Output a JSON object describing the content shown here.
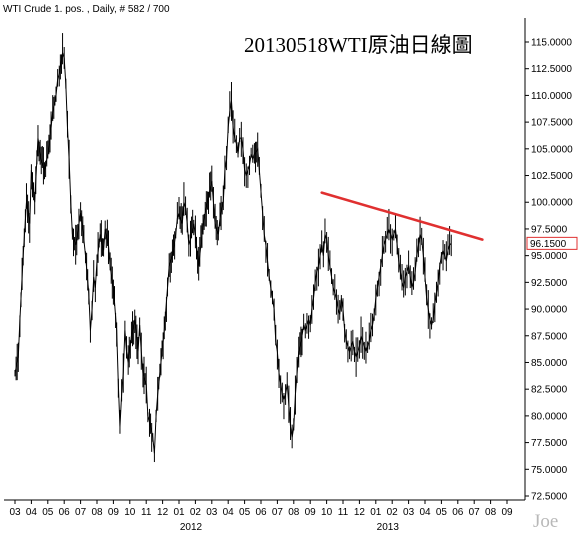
{
  "header": {
    "study_label": "WTI Crude 1. pos. , Daily, # 582 / 700"
  },
  "watermark": "Joe",
  "chart_data": {
    "type": "line",
    "title": "20130518WTI原油日線圖",
    "ylim": [
      72.5,
      115.0
    ],
    "y_ticks": [
      "115.0000",
      "112.5000",
      "110.0000",
      "107.5000",
      "105.0000",
      "102.5000",
      "100.0000",
      "97.5000",
      "95.0000",
      "92.5000",
      "90.0000",
      "87.5000",
      "85.0000",
      "82.5000",
      "80.0000",
      "77.5000",
      "75.0000",
      "72.5000"
    ],
    "y_tick_values": [
      115.0,
      112.5,
      110.0,
      107.5,
      105.0,
      102.5,
      100.0,
      97.5,
      95.0,
      92.5,
      90.0,
      87.5,
      85.0,
      82.5,
      80.0,
      77.5,
      75.0,
      72.5
    ],
    "month_labels": [
      "03",
      "04",
      "05",
      "06",
      "07",
      "08",
      "09",
      "10",
      "11",
      "12",
      "01",
      "02",
      "03",
      "04",
      "05",
      "06",
      "07",
      "08",
      "09",
      "10",
      "11",
      "12",
      "01",
      "02",
      "03",
      "04",
      "05",
      "06",
      "07",
      "08",
      "09"
    ],
    "year_labels": [
      {
        "label": "2012",
        "month_index": 10
      },
      {
        "label": "2013",
        "month_index": 22
      }
    ],
    "month_span": [
      0,
      30.6
    ],
    "last_price": {
      "label": "96.1500",
      "value": 96.15
    },
    "trendline": {
      "color": "#e03030",
      "points": [
        {
          "t": 18.7,
          "y": 100.9
        },
        {
          "t": 28.5,
          "y": 96.5
        }
      ]
    },
    "series": [
      {
        "color": "#000000",
        "points": [
          [
            0.0,
            84.0
          ],
          [
            0.2,
            85.5
          ],
          [
            0.3,
            89.0
          ],
          [
            0.5,
            95.0
          ],
          [
            0.7,
            100.0
          ],
          [
            0.9,
            98.0
          ],
          [
            1.0,
            103.0
          ],
          [
            1.2,
            100.0
          ],
          [
            1.4,
            106.0
          ],
          [
            1.6,
            104.0
          ],
          [
            1.8,
            103.0
          ],
          [
            2.0,
            104.5
          ],
          [
            2.2,
            107.0
          ],
          [
            2.3,
            108.5
          ],
          [
            2.5,
            110.0
          ],
          [
            2.6,
            111.5
          ],
          [
            2.7,
            112.0
          ],
          [
            2.9,
            114.0
          ],
          [
            3.0,
            113.5
          ],
          [
            3.1,
            111.0
          ],
          [
            3.2,
            107.0
          ],
          [
            3.3,
            104.0
          ],
          [
            3.4,
            100.0
          ],
          [
            3.5,
            97.0
          ],
          [
            3.7,
            96.0
          ],
          [
            3.9,
            98.0
          ],
          [
            4.0,
            99.0
          ],
          [
            4.2,
            96.5
          ],
          [
            4.3,
            95.0
          ],
          [
            4.5,
            91.5
          ],
          [
            4.6,
            88.0
          ],
          [
            4.7,
            90.0
          ],
          [
            4.8,
            93.0
          ],
          [
            4.9,
            92.0
          ],
          [
            5.0,
            94.5
          ],
          [
            5.2,
            97.0
          ],
          [
            5.4,
            95.5
          ],
          [
            5.5,
            97.5
          ],
          [
            5.7,
            96.0
          ],
          [
            5.8,
            94.0
          ],
          [
            6.0,
            92.0
          ],
          [
            6.2,
            88.0
          ],
          [
            6.3,
            83.0
          ],
          [
            6.4,
            79.0
          ],
          [
            6.5,
            82.0
          ],
          [
            6.6,
            84.0
          ],
          [
            6.7,
            88.0
          ],
          [
            6.8,
            86.0
          ],
          [
            6.9,
            85.0
          ],
          [
            7.1,
            87.5
          ],
          [
            7.3,
            89.0
          ],
          [
            7.5,
            86.0
          ],
          [
            7.6,
            88.5
          ],
          [
            7.7,
            86.0
          ],
          [
            7.8,
            84.0
          ],
          [
            8.0,
            83.0
          ],
          [
            8.1,
            80.0
          ],
          [
            8.2,
            79.5
          ],
          [
            8.4,
            78.0
          ],
          [
            8.5,
            76.5
          ],
          [
            8.6,
            80.0
          ],
          [
            8.7,
            82.0
          ],
          [
            8.9,
            85.0
          ],
          [
            9.1,
            88.0
          ],
          [
            9.3,
            92.0
          ],
          [
            9.4,
            94.0
          ],
          [
            9.6,
            95.0
          ],
          [
            9.8,
            97.0
          ],
          [
            9.9,
            98.5
          ],
          [
            10.0,
            99.0
          ],
          [
            10.2,
            98.0
          ],
          [
            10.3,
            100.0
          ],
          [
            10.4,
            99.5
          ],
          [
            10.5,
            98.0
          ],
          [
            10.6,
            96.0
          ],
          [
            10.7,
            96.5
          ],
          [
            10.9,
            98.0
          ],
          [
            11.0,
            97.0
          ],
          [
            11.2,
            94.0
          ],
          [
            11.4,
            97.0
          ],
          [
            11.6,
            99.0
          ],
          [
            11.8,
            100.5
          ],
          [
            12.0,
            102.0
          ],
          [
            12.1,
            100.0
          ],
          [
            12.2,
            98.0
          ],
          [
            12.4,
            97.0
          ],
          [
            12.5,
            98.5
          ],
          [
            12.7,
            100.0
          ],
          [
            12.8,
            103.0
          ],
          [
            12.9,
            104.0
          ],
          [
            13.0,
            107.0
          ],
          [
            13.1,
            108.5
          ],
          [
            13.2,
            109.5
          ],
          [
            13.3,
            107.0
          ],
          [
            13.4,
            106.0
          ],
          [
            13.5,
            105.5
          ],
          [
            13.6,
            104.5
          ],
          [
            13.7,
            106.0
          ],
          [
            13.8,
            106.0
          ],
          [
            13.9,
            105.0
          ],
          [
            14.0,
            103.0
          ],
          [
            14.1,
            102.5
          ],
          [
            14.2,
            103.0
          ],
          [
            14.3,
            103.5
          ],
          [
            14.4,
            104.5
          ],
          [
            14.5,
            104.0
          ],
          [
            14.6,
            104.5
          ],
          [
            14.8,
            105.0
          ],
          [
            14.9,
            103.0
          ],
          [
            15.0,
            101.0
          ],
          [
            15.1,
            99.0
          ],
          [
            15.2,
            97.0
          ],
          [
            15.3,
            96.0
          ],
          [
            15.4,
            94.5
          ],
          [
            15.5,
            93.0
          ],
          [
            15.6,
            92.0
          ],
          [
            15.7,
            91.0
          ],
          [
            15.8,
            90.0
          ],
          [
            15.9,
            87.0
          ],
          [
            16.0,
            86.0
          ],
          [
            16.1,
            84.0
          ],
          [
            16.2,
            83.0
          ],
          [
            16.3,
            82.0
          ],
          [
            16.4,
            81.5
          ],
          [
            16.5,
            82.0
          ],
          [
            16.6,
            83.0
          ],
          [
            16.7,
            81.0
          ],
          [
            16.8,
            79.0
          ],
          [
            16.9,
            78.0
          ],
          [
            17.0,
            79.0
          ],
          [
            17.1,
            82.0
          ],
          [
            17.2,
            84.0
          ],
          [
            17.3,
            86.0
          ],
          [
            17.5,
            87.5
          ],
          [
            17.6,
            88.5
          ],
          [
            17.7,
            88.0
          ],
          [
            17.8,
            88.5
          ],
          [
            17.9,
            89.0
          ],
          [
            18.0,
            88.5
          ],
          [
            18.1,
            90.0
          ],
          [
            18.2,
            91.0
          ],
          [
            18.3,
            92.5
          ],
          [
            18.4,
            93.5
          ],
          [
            18.5,
            94.0
          ],
          [
            18.6,
            95.0
          ],
          [
            18.7,
            96.0
          ],
          [
            18.8,
            95.0
          ],
          [
            18.9,
            97.0
          ],
          [
            19.0,
            96.5
          ],
          [
            19.1,
            95.0
          ],
          [
            19.2,
            94.0
          ],
          [
            19.3,
            93.0
          ],
          [
            19.4,
            92.0
          ],
          [
            19.5,
            91.5
          ],
          [
            19.6,
            91.0
          ],
          [
            19.7,
            90.0
          ],
          [
            19.8,
            89.5
          ],
          [
            19.9,
            91.0
          ],
          [
            20.0,
            90.0
          ],
          [
            20.1,
            88.0
          ],
          [
            20.2,
            87.0
          ],
          [
            20.3,
            86.5
          ],
          [
            20.4,
            86.0
          ],
          [
            20.5,
            86.5
          ],
          [
            20.6,
            87.0
          ],
          [
            20.7,
            86.0
          ],
          [
            20.8,
            85.5
          ],
          [
            20.9,
            86.0
          ],
          [
            21.0,
            86.5
          ],
          [
            21.1,
            87.5
          ],
          [
            21.2,
            87.0
          ],
          [
            21.3,
            86.5
          ],
          [
            21.4,
            86.0
          ],
          [
            21.5,
            86.5
          ],
          [
            21.6,
            87.0
          ],
          [
            21.7,
            88.0
          ],
          [
            21.8,
            88.5
          ],
          [
            21.9,
            89.5
          ],
          [
            22.0,
            91.0
          ],
          [
            22.1,
            92.0
          ],
          [
            22.2,
            93.0
          ],
          [
            22.3,
            94.0
          ],
          [
            22.4,
            95.0
          ],
          [
            22.5,
            96.0
          ],
          [
            22.6,
            96.5
          ],
          [
            22.7,
            97.0
          ],
          [
            22.8,
            97.5
          ],
          [
            22.9,
            97.0
          ],
          [
            23.0,
            96.5
          ],
          [
            23.1,
            97.0
          ],
          [
            23.2,
            97.5
          ],
          [
            23.3,
            96.0
          ],
          [
            23.4,
            94.5
          ],
          [
            23.5,
            93.5
          ],
          [
            23.6,
            92.5
          ],
          [
            23.7,
            92.0
          ],
          [
            23.8,
            93.0
          ],
          [
            23.9,
            93.5
          ],
          [
            24.0,
            94.0
          ],
          [
            24.1,
            93.0
          ],
          [
            24.2,
            92.0
          ],
          [
            24.3,
            92.5
          ],
          [
            24.4,
            93.5
          ],
          [
            24.5,
            95.0
          ],
          [
            24.6,
            96.0
          ],
          [
            24.7,
            97.0
          ],
          [
            24.8,
            96.5
          ],
          [
            24.9,
            95.0
          ],
          [
            25.0,
            93.0
          ],
          [
            25.1,
            91.0
          ],
          [
            25.2,
            90.0
          ],
          [
            25.3,
            89.0
          ],
          [
            25.4,
            88.5
          ],
          [
            25.5,
            89.0
          ],
          [
            25.6,
            90.5
          ],
          [
            25.7,
            91.5
          ],
          [
            25.8,
            92.5
          ],
          [
            25.9,
            94.0
          ],
          [
            26.0,
            95.0
          ],
          [
            26.1,
            95.5
          ],
          [
            26.2,
            95.0
          ],
          [
            26.3,
            94.5
          ],
          [
            26.4,
            95.5
          ],
          [
            26.5,
            96.0
          ],
          [
            26.6,
            96.15
          ]
        ]
      }
    ]
  }
}
